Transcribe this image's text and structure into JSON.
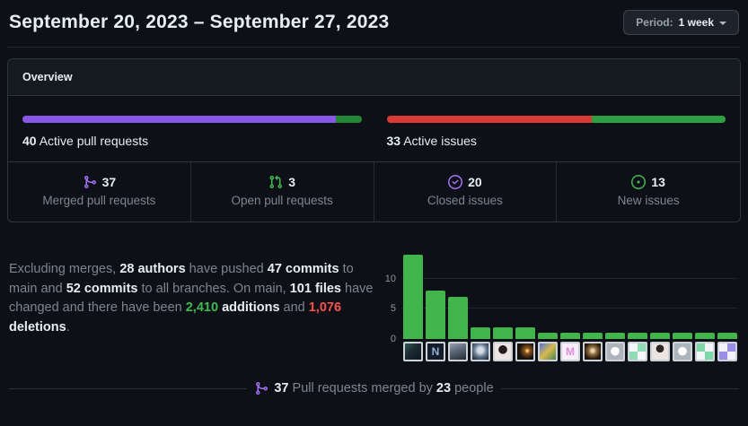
{
  "header": {
    "title": "September 20, 2023 – September 27, 2023",
    "period_button": {
      "prefix": "Period:",
      "value": "1 week"
    }
  },
  "overview": {
    "title": "Overview",
    "pull_requests": {
      "active_count": 40,
      "active_label": "Active pull requests",
      "merged": 37,
      "open": 3,
      "merged_color": "#8957e5",
      "open_color": "#238636"
    },
    "issues": {
      "active_count": 33,
      "active_label": "Active issues",
      "closed": 20,
      "new": 13,
      "closed_color": "#d93a35",
      "new_color": "#2ea043"
    },
    "stats": [
      {
        "icon": "git-merge-icon",
        "icon_color": "#a371f7",
        "value": "37",
        "label": "Merged pull requests"
      },
      {
        "icon": "git-pull-request-icon",
        "icon_color": "#3fb950",
        "value": "3",
        "label": "Open pull requests"
      },
      {
        "icon": "issue-closed-icon",
        "icon_color": "#a371f7",
        "value": "20",
        "label": "Closed issues"
      },
      {
        "icon": "issue-opened-icon",
        "icon_color": "#3fb950",
        "value": "13",
        "label": "New issues"
      }
    ]
  },
  "summary": {
    "segments": [
      {
        "text": "Excluding merges, ",
        "style": "normal"
      },
      {
        "text": "28 authors",
        "style": "bold"
      },
      {
        "text": " have pushed ",
        "style": "normal"
      },
      {
        "text": "47 commits",
        "style": "bold"
      },
      {
        "text": " to main and ",
        "style": "normal"
      },
      {
        "text": "52 commits",
        "style": "bold"
      },
      {
        "text": " to all branches. On main, ",
        "style": "normal"
      },
      {
        "text": "101 files",
        "style": "bold"
      },
      {
        "text": " have changed and there have been ",
        "style": "normal"
      },
      {
        "text": "2,410",
        "style": "green-bold"
      },
      {
        "text": " ",
        "style": "normal"
      },
      {
        "text": "additions",
        "style": "bold"
      },
      {
        "text": " and ",
        "style": "normal"
      },
      {
        "text": "1,076",
        "style": "red-bold"
      },
      {
        "text": " ",
        "style": "normal"
      },
      {
        "text": "deletions",
        "style": "bold"
      },
      {
        "text": ".",
        "style": "normal"
      }
    ]
  },
  "chart_data": {
    "type": "bar",
    "title": "",
    "xlabel": "",
    "ylabel": "",
    "categories": [
      "contributor-1",
      "contributor-2",
      "contributor-3",
      "contributor-4",
      "contributor-5",
      "contributor-6",
      "contributor-7",
      "contributor-8",
      "contributor-9",
      "contributor-10",
      "contributor-11",
      "contributor-12",
      "contributor-13",
      "contributor-14",
      "contributor-15"
    ],
    "values": [
      14,
      8,
      7,
      2,
      2,
      2,
      1,
      1,
      1,
      1,
      1,
      1,
      1,
      1,
      1
    ],
    "yticks": [
      0,
      5,
      10
    ],
    "ylim": [
      0,
      15.5
    ],
    "bar_color": "#41b44b",
    "grid": true,
    "legend": false
  },
  "contributors": [
    {
      "desc": "photo: person with dark hair, teal accents",
      "bg": "linear-gradient(135deg,#2f5a50 0%,#1b2a33 45%,#10161d 100%)",
      "glyph": ""
    },
    {
      "desc": "dark logo with letter N",
      "bg": "#151d2b",
      "glyph": "N",
      "glyph_color": "#8fb3d9"
    },
    {
      "desc": "gray photo of person",
      "bg": "linear-gradient(160deg,#93a0ae 0%,#5a6675 45%,#232a33 100%)",
      "glyph": ""
    },
    {
      "desc": "person in light hood",
      "bg": "radial-gradient(circle at 50% 42%,#d4dce6 22%,#64788e 52%,#161d26 100%)",
      "glyph": ""
    },
    {
      "desc": "woman with dark hair on light background",
      "bg": "radial-gradient(circle at 50% 38%,#241c20 32%,#ece6e2 35%)",
      "glyph": ""
    },
    {
      "desc": "night photo with bright light",
      "bg": "radial-gradient(circle at 62% 45%,#ffc25e 7%,#8a5423 20%,#151009 62%)",
      "glyph": ""
    },
    {
      "desc": "colorful photo, person with cap",
      "bg": "linear-gradient(135deg,#4f74d8 0%,#d9b94e 50%,#47824f 100%)",
      "glyph": ""
    },
    {
      "desc": "white logo with magenta mark",
      "bg": "#f7eef7",
      "glyph": "M",
      "glyph_color": "#df8ddf"
    },
    {
      "desc": "dark photo with glowing figure",
      "bg": "radial-gradient(circle at 50% 45%,#e9d9b6 10%,#93703f 32%,#20160d 72%)",
      "glyph": ""
    },
    {
      "desc": "default octocat avatar",
      "bg": "radial-gradient(circle at 50% 48%,#ffffff 36%,#aeb4bb 38%)",
      "glyph": ""
    },
    {
      "desc": "mint identicon",
      "bg": "conic-gradient(#8fdcb4 25%,#f4f7f9 0 50%,#8fdcb4 0 75%,#f4f7f9 0)",
      "glyph": ""
    },
    {
      "desc": "woman in white top",
      "bg": "radial-gradient(circle at 50% 32%,#2b2422 27%,#eae5e0 30%)",
      "glyph": ""
    },
    {
      "desc": "default octocat avatar",
      "bg": "radial-gradient(circle at 50% 48%,#ffffff 36%,#aeb4bb 38%)",
      "glyph": ""
    },
    {
      "desc": "green identicon",
      "bg": "conic-gradient(#f2f6f8 25%,#7fd8a8 0 50%,#f2f6f8 0 75%,#7fd8a8 0)",
      "glyph": ""
    },
    {
      "desc": "purple identicon",
      "bg": "conic-gradient(#9a8fe8 25%,#f2f1fa 0 50%,#9a8fe8 0 75%,#f2f1fa 0)",
      "glyph": ""
    }
  ],
  "footer": {
    "segments": [
      {
        "text": "37",
        "style": "bold"
      },
      {
        "text": " Pull requests merged by ",
        "style": "normal"
      },
      {
        "text": "23",
        "style": "bold"
      },
      {
        "text": " people",
        "style": "normal"
      }
    ]
  }
}
